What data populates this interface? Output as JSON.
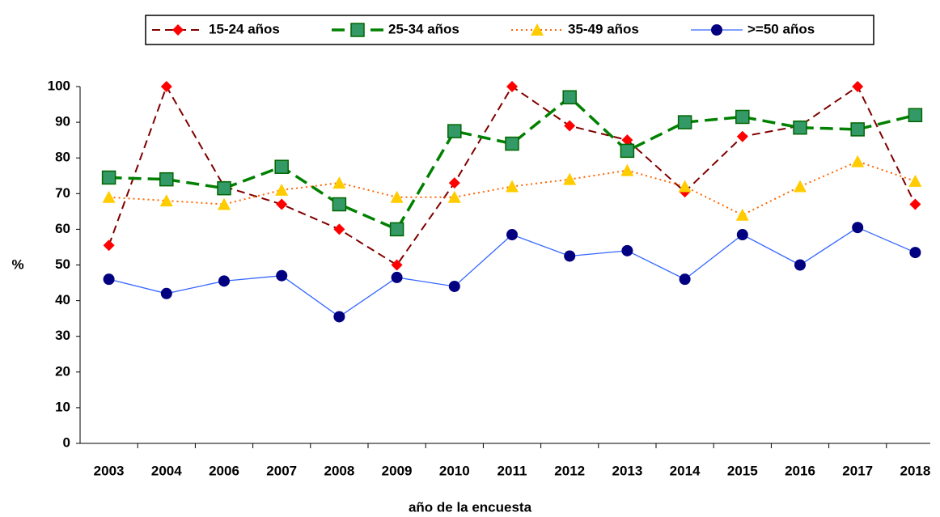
{
  "chart_data": {
    "type": "line",
    "x_label": "año de la encuesta",
    "y_label": "%",
    "categories": [
      "2003",
      "2004",
      "2006",
      "2007",
      "2008",
      "2009",
      "2010",
      "2011",
      "2012",
      "2013",
      "2014",
      "2015",
      "2016",
      "2017",
      "2018"
    ],
    "series": [
      {
        "name": "15-24 años",
        "color": "#800000",
        "marker_color": "#ff0000",
        "marker": "diamond",
        "dash": "10,6",
        "values": [
          55.5,
          100,
          72,
          67,
          60,
          50,
          73,
          100,
          89,
          85,
          70.5,
          86,
          89,
          100,
          67
        ]
      },
      {
        "name": "25-34 años",
        "color": "#008000",
        "marker_color": "#339966",
        "marker": "square",
        "dash": "16,8",
        "values": [
          74.5,
          74,
          71.5,
          77.5,
          67,
          60,
          87.5,
          84,
          97,
          82,
          90,
          91.5,
          88.5,
          88,
          92
        ]
      },
      {
        "name": "35-49 años",
        "color": "#ff6600",
        "marker_color": "#ffcc00",
        "marker": "triangle",
        "dash": "2,4",
        "values": [
          69,
          68,
          67,
          71,
          73,
          69,
          69,
          72,
          74,
          76.5,
          72,
          64,
          72,
          79,
          73.5
        ]
      },
      {
        "name": ">=50 años",
        "color": "#3366ff",
        "marker_color": "#000080",
        "marker": "circle",
        "dash": "none",
        "values": [
          46,
          42,
          45.5,
          47,
          35.5,
          46.5,
          44,
          58.5,
          52.5,
          54,
          46,
          58.5,
          50,
          60.5,
          53.5
        ]
      }
    ],
    "ylim": [
      0,
      100
    ],
    "yticks": [
      0,
      10,
      20,
      30,
      40,
      50,
      60,
      70,
      80,
      90,
      100
    ],
    "grid": false,
    "legend": "top"
  }
}
